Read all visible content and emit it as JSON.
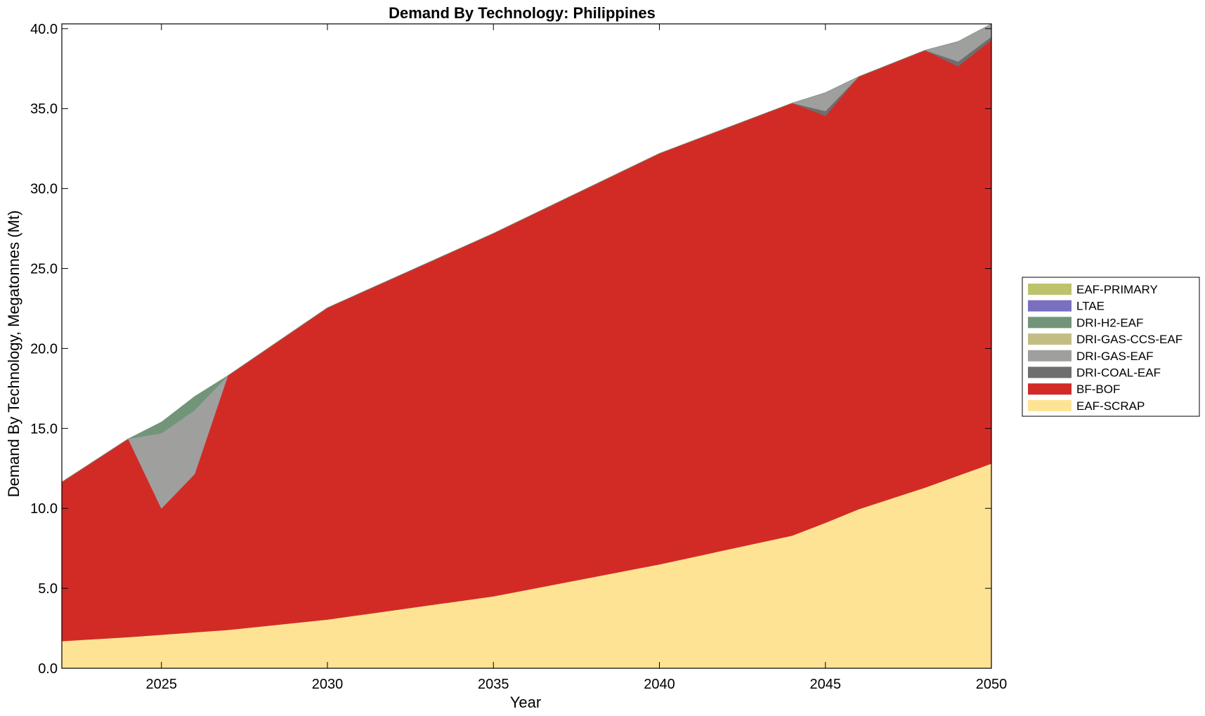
{
  "chart_data": {
    "type": "area",
    "stacked": true,
    "title": "Demand By Technology: Philippines",
    "xlabel": "Year",
    "ylabel": "Demand By Technology, Megatonnes (Mt)",
    "xlim": [
      2022,
      2050
    ],
    "ylim": [
      0,
      40.3
    ],
    "x": [
      2022,
      2024,
      2025,
      2026,
      2027,
      2030,
      2035,
      2040,
      2044,
      2045,
      2046,
      2048,
      2049,
      2050
    ],
    "xticks": [
      2025,
      2030,
      2035,
      2040,
      2045,
      2050
    ],
    "yticks": [
      "0.0",
      "5.0",
      "10.0",
      "15.0",
      "20.0",
      "25.0",
      "30.0",
      "35.0",
      "40.0"
    ],
    "legend_position": "right",
    "grid": false,
    "series": [
      {
        "name": "EAF-SCRAP",
        "color": "#fee394",
        "values": [
          1.7,
          1.95,
          2.1,
          2.25,
          2.4,
          3.05,
          4.5,
          6.5,
          8.3,
          9.1,
          9.95,
          11.3,
          12.05,
          12.8
        ]
      },
      {
        "name": "BF-BOF",
        "color": "#d22b26",
        "values": [
          9.95,
          12.4,
          7.9,
          9.9,
          15.9,
          19.5,
          22.7,
          25.7,
          27.05,
          25.45,
          27.05,
          27.35,
          25.6,
          26.5
        ]
      },
      {
        "name": "DRI-COAL-EAF",
        "color": "#6e6e6e",
        "values": [
          0,
          0,
          0,
          0,
          0,
          0,
          0,
          0,
          0,
          0.3,
          0,
          0,
          0.3,
          0.2
        ]
      },
      {
        "name": "DRI-GAS-EAF",
        "color": "#9f9f9e",
        "values": [
          0,
          0,
          4.7,
          4.0,
          0,
          0,
          0,
          0,
          0,
          1.15,
          0,
          0,
          1.25,
          0.8
        ]
      },
      {
        "name": "DRI-GAS-CCS-EAF",
        "color": "#c4bd83",
        "values": [
          0,
          0,
          0,
          0,
          0,
          0,
          0,
          0,
          0,
          0,
          0,
          0,
          0,
          0
        ]
      },
      {
        "name": "DRI-H2-EAF",
        "color": "#729579",
        "values": [
          0,
          0,
          0.7,
          0.85,
          0,
          0,
          0,
          0,
          0,
          0,
          0,
          0,
          0,
          0
        ]
      },
      {
        "name": "LTAE",
        "color": "#7b6fc0",
        "values": [
          0,
          0,
          0,
          0,
          0,
          0,
          0,
          0,
          0,
          0,
          0,
          0,
          0,
          0
        ]
      },
      {
        "name": "EAF-PRIMARY",
        "color": "#bcc36c",
        "values": [
          0,
          0,
          0,
          0,
          0,
          0,
          0,
          0,
          0,
          0,
          0,
          0,
          0,
          0
        ]
      }
    ],
    "legend_order": [
      "EAF-PRIMARY",
      "LTAE",
      "DRI-H2-EAF",
      "DRI-GAS-CCS-EAF",
      "DRI-GAS-EAF",
      "DRI-COAL-EAF",
      "BF-BOF",
      "EAF-SCRAP"
    ]
  }
}
